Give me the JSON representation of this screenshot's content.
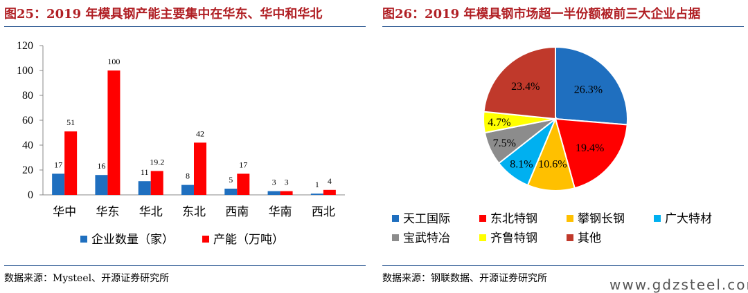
{
  "left": {
    "title": "图25：2019 年模具钢产能主要集中在华东、华中和华北",
    "source": "数据来源：Mysteel、开源证券研究所"
  },
  "right": {
    "title": "图26：2019 年模具钢市场超一半份额被前三大企业占据",
    "source": "数据来源：钢联数据、开源证券研究所"
  },
  "watermark": "www.gdzsteel.com",
  "chart_data": [
    {
      "type": "bar",
      "categories": [
        "华中",
        "华东",
        "华北",
        "东北",
        "西南",
        "华南",
        "西北"
      ],
      "series": [
        {
          "name": "企业数量（家）",
          "values": [
            17,
            16,
            11,
            8,
            5,
            3,
            1
          ],
          "labels": [
            "17",
            "16",
            "11",
            "8",
            "5",
            "3",
            "1"
          ],
          "color": "#1f6fbf"
        },
        {
          "name": "产能（万吨）",
          "values": [
            51,
            100,
            19.2,
            42,
            17,
            3,
            4
          ],
          "labels": [
            "51",
            "100",
            "19.2",
            "42",
            "17",
            "3",
            "4"
          ],
          "color": "#ff0000"
        }
      ],
      "yticks": [
        "0",
        "20",
        "40",
        "60",
        "80",
        "100",
        "120"
      ],
      "ylim": [
        0,
        120
      ],
      "legend": "bottom"
    },
    {
      "type": "pie",
      "slices": [
        {
          "name": "天工国际",
          "value": 26.3,
          "label": "26.3%",
          "color": "#1f6fbf"
        },
        {
          "name": "东北特钢",
          "value": 19.4,
          "label": "19.4%",
          "color": "#ff0000"
        },
        {
          "name": "攀钢长钢",
          "value": 10.6,
          "label": "10.6%",
          "color": "#ffc000"
        },
        {
          "name": "广大特材",
          "value": 8.1,
          "label": "8.1%",
          "color": "#00b0f0"
        },
        {
          "name": "宝武特冶",
          "value": 7.5,
          "label": "7.5%",
          "color": "#8c8c8c"
        },
        {
          "name": "齐鲁特钢",
          "value": 4.7,
          "label": "4.7%",
          "color": "#ffff00"
        },
        {
          "name": "其他",
          "value": 23.4,
          "label": "23.4%",
          "color": "#c0392b"
        }
      ],
      "legend": "bottom"
    }
  ]
}
